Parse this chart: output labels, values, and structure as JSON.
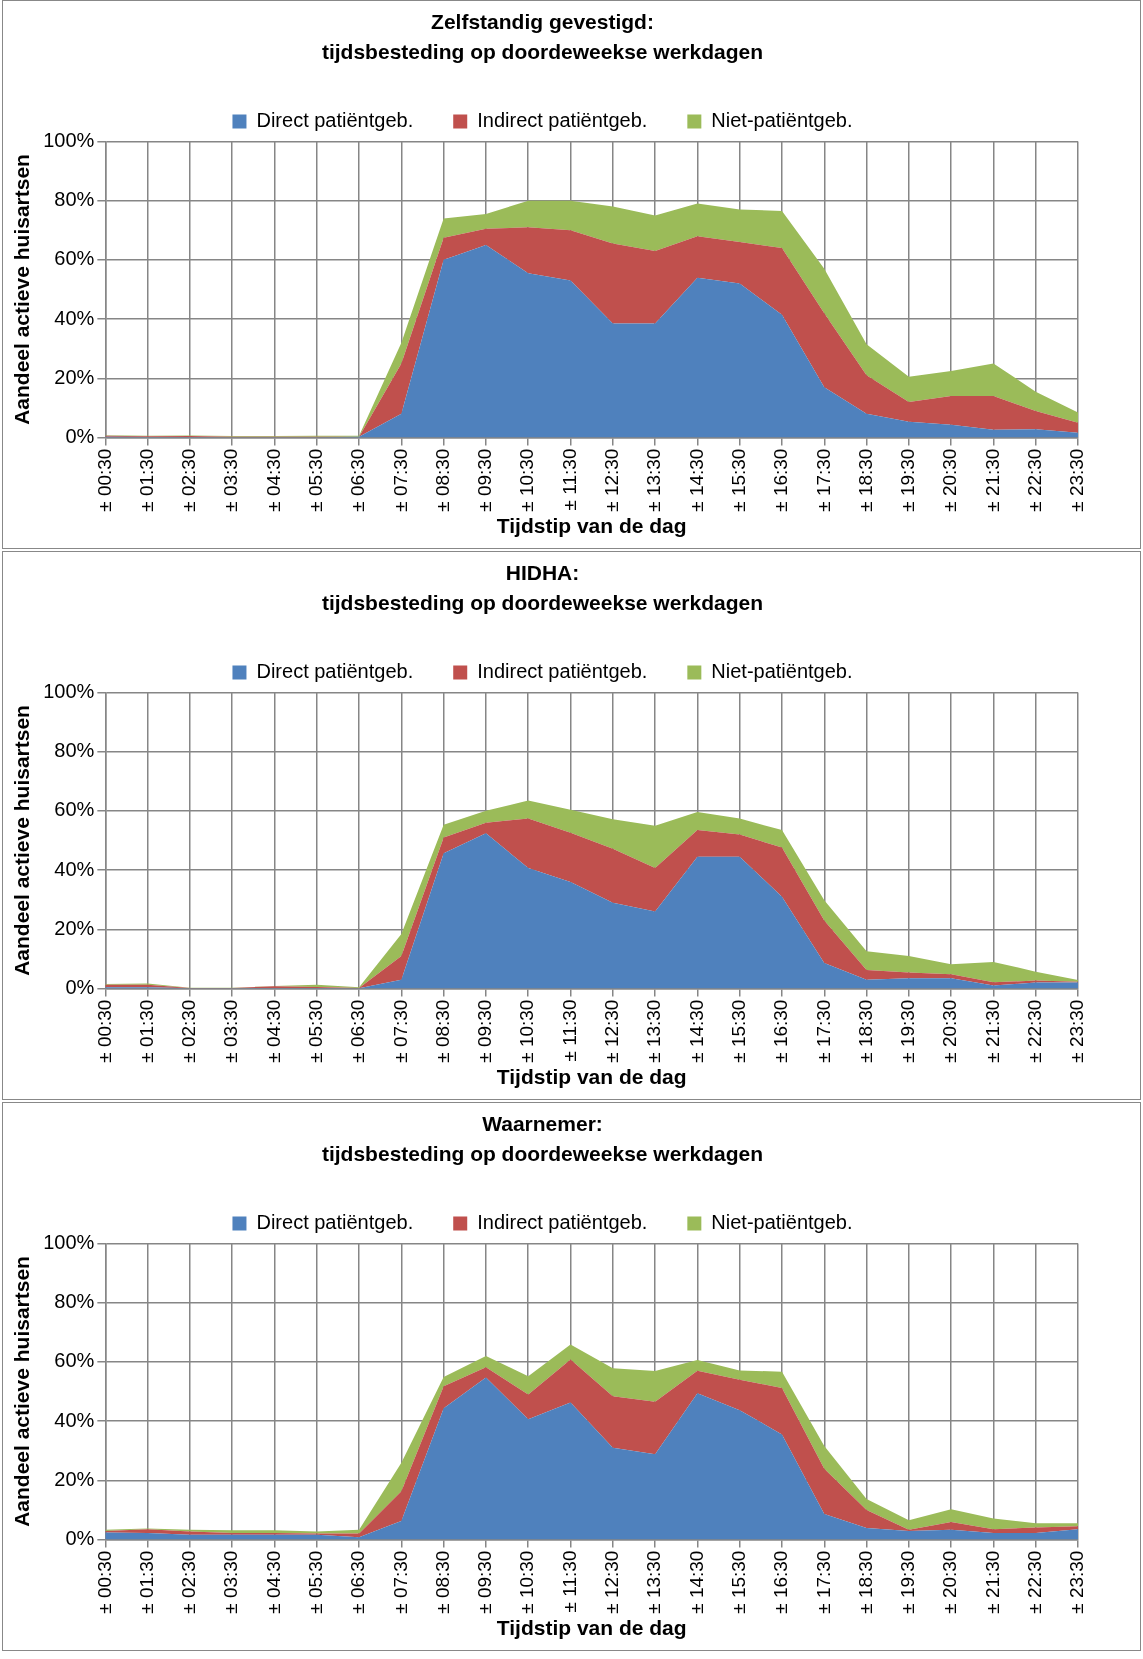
{
  "chart_data": [
    {
      "type": "area",
      "title": "Zelfstandig gevestigd:",
      "subtitle": "tijdsbesteding op doordeweekse werkdagen",
      "xlabel": "Tijdstip van de dag",
      "ylabel": "Aandeel actieve huisartsen",
      "stacked": true,
      "grid": true,
      "legend": "top",
      "categories": [
        "± 00:30",
        "± 01:30",
        "± 02:30",
        "± 03:30",
        "± 04:30",
        "± 05:30",
        "± 06:30",
        "± 07:30",
        "± 08:30",
        "± 09:30",
        "± 10:30",
        "± 11:30",
        "± 12:30",
        "± 13:30",
        "± 14:30",
        "± 15:30",
        "± 16:30",
        "± 17:30",
        "± 18:30",
        "± 19:30",
        "± 20:30",
        "± 21:30",
        "± 22:30",
        "± 23:30"
      ],
      "ylim": [
        0,
        100
      ],
      "yticks": [
        {
          "value": 0,
          "label": "0%"
        },
        {
          "value": 20,
          "label": "20%"
        },
        {
          "value": 40,
          "label": "40%"
        },
        {
          "value": 60,
          "label": "60%"
        },
        {
          "value": 80,
          "label": "80%"
        },
        {
          "value": 100,
          "label": "100%"
        }
      ],
      "series": [
        {
          "name": "Direct patiëntgeb.",
          "color": "#4f81bd",
          "values": [
            0.3,
            0.2,
            0.2,
            0.1,
            0.1,
            0.1,
            0.3,
            8,
            60,
            65,
            55.5,
            53,
            38.5,
            38.5,
            54,
            52,
            41.5,
            17,
            8,
            5.3,
            4.3,
            2.6,
            2.8,
            1.6
          ]
        },
        {
          "name": "Indirect patiëntgeb.",
          "color": "#c0504d",
          "values": [
            0.3,
            0.2,
            0.3,
            0.2,
            0.2,
            0.2,
            0,
            17,
            7.5,
            5.5,
            15.5,
            17,
            27,
            24.5,
            14,
            14,
            22.5,
            25,
            13,
            6.7,
            9.7,
            11.4,
            6.2,
            3.4
          ]
        },
        {
          "name": "Niet-patiëntgeb.",
          "color": "#9bbb59",
          "values": [
            0.2,
            0.2,
            0.2,
            0.2,
            0.2,
            0.3,
            0.3,
            7,
            6.5,
            5,
            9,
            10,
            12.5,
            12,
            11,
            11,
            12.5,
            15,
            10.5,
            8.5,
            8.5,
            11,
            6.5,
            3.5
          ]
        }
      ]
    },
    {
      "type": "area",
      "title": "HIDHA:",
      "subtitle": "tijdsbesteding op doordeweekse werkdagen",
      "xlabel": "Tijdstip van de dag",
      "ylabel": "Aandeel actieve huisartsen",
      "stacked": true,
      "grid": true,
      "legend": "top",
      "categories": [
        "± 00:30",
        "± 01:30",
        "± 02:30",
        "± 03:30",
        "± 04:30",
        "± 05:30",
        "± 06:30",
        "± 07:30",
        "± 08:30",
        "± 09:30",
        "± 10:30",
        "± 11:30",
        "± 12:30",
        "± 13:30",
        "± 14:30",
        "± 15:30",
        "± 16:30",
        "± 17:30",
        "± 18:30",
        "± 19:30",
        "± 20:30",
        "± 21:30",
        "± 22:30",
        "± 23:30"
      ],
      "ylim": [
        0,
        100
      ],
      "yticks": [
        {
          "value": 0,
          "label": "0%"
        },
        {
          "value": 20,
          "label": "20%"
        },
        {
          "value": 40,
          "label": "40%"
        },
        {
          "value": 60,
          "label": "60%"
        },
        {
          "value": 80,
          "label": "80%"
        },
        {
          "value": 100,
          "label": "100%"
        }
      ],
      "series": [
        {
          "name": "Direct patiëntgeb.",
          "color": "#4f81bd",
          "values": [
            0.4,
            0.4,
            0.1,
            0.1,
            0.2,
            0.2,
            0.1,
            3,
            45.7,
            52.4,
            40.7,
            36,
            29,
            26,
            44.5,
            44.5,
            31,
            8.6,
            3,
            3.5,
            3.5,
            1,
            2,
            2
          ]
        },
        {
          "name": "Indirect patiëntgeb.",
          "color": "#c0504d",
          "values": [
            0.9,
            0.9,
            0.1,
            0.1,
            0.6,
            0.3,
            0.1,
            8,
            5.3,
            3.6,
            16.7,
            16.6,
            18.2,
            14.7,
            9,
            7.5,
            16.6,
            14.4,
            3.3,
            1.9,
            1.3,
            1.1,
            0.7,
            0.3
          ]
        },
        {
          "name": "Niet-patiëntgeb.",
          "color": "#9bbb59",
          "values": [
            0.2,
            0.4,
            0.1,
            0.1,
            0.1,
            0.8,
            0.2,
            7.4,
            4.3,
            4,
            6.1,
            7.8,
            10,
            14.3,
            6.1,
            5.4,
            5.9,
            6.8,
            6.3,
            5.6,
            3.4,
            6.9,
            3,
            0.6
          ]
        }
      ]
    },
    {
      "type": "area",
      "title": "Waarnemer:",
      "subtitle": "tijdsbesteding op doordeweekse werkdagen",
      "xlabel": "Tijdstip van de dag",
      "ylabel": "Aandeel actieve huisartsen",
      "stacked": true,
      "grid": true,
      "legend": "top",
      "categories": [
        "± 00:30",
        "± 01:30",
        "± 02:30",
        "± 03:30",
        "± 04:30",
        "± 05:30",
        "± 06:30",
        "± 07:30",
        "± 08:30",
        "± 09:30",
        "± 10:30",
        "± 11:30",
        "± 12:30",
        "± 13:30",
        "± 14:30",
        "± 15:30",
        "± 16:30",
        "± 17:30",
        "± 18:30",
        "± 19:30",
        "± 20:30",
        "± 21:30",
        "± 22:30",
        "± 23:30"
      ],
      "ylim": [
        0,
        100
      ],
      "yticks": [
        {
          "value": 0,
          "label": "0%"
        },
        {
          "value": 20,
          "label": "20%"
        },
        {
          "value": 40,
          "label": "40%"
        },
        {
          "value": 60,
          "label": "60%"
        },
        {
          "value": 80,
          "label": "80%"
        },
        {
          "value": 100,
          "label": "100%"
        }
      ],
      "series": [
        {
          "name": "Direct patiëntgeb.",
          "color": "#4f81bd",
          "values": [
            2.4,
            2.2,
            1.6,
            1.6,
            1.6,
            1.6,
            0.8,
            6.3,
            44.3,
            54.7,
            40.6,
            46.3,
            31,
            28.8,
            49.4,
            43.7,
            35.5,
            8.6,
            3.9,
            2.9,
            3.3,
            2.2,
            2.2,
            3.5
          ]
        },
        {
          "name": "Indirect patiëntgeb.",
          "color": "#c0504d",
          "values": [
            0.5,
            1.3,
            1.1,
            0.6,
            0.6,
            0.4,
            1.2,
            10,
            7.5,
            3.5,
            8.4,
            14.5,
            17.4,
            17.7,
            7.6,
            10.3,
            15.7,
            15.3,
            6.1,
            0.4,
            2.6,
            1.3,
            1.9,
            1
          ]
        },
        {
          "name": "Niet-patiëntgeb.",
          "color": "#9bbb59",
          "values": [
            0.4,
            0.2,
            0.6,
            0.9,
            0.9,
            0.7,
            1.3,
            9.6,
            3.1,
            3.8,
            6.1,
            5.1,
            9.4,
            10.4,
            3.6,
            3.1,
            5.5,
            7.7,
            3.7,
            3.2,
            4.3,
            3.6,
            1.4,
            1
          ]
        }
      ]
    }
  ]
}
